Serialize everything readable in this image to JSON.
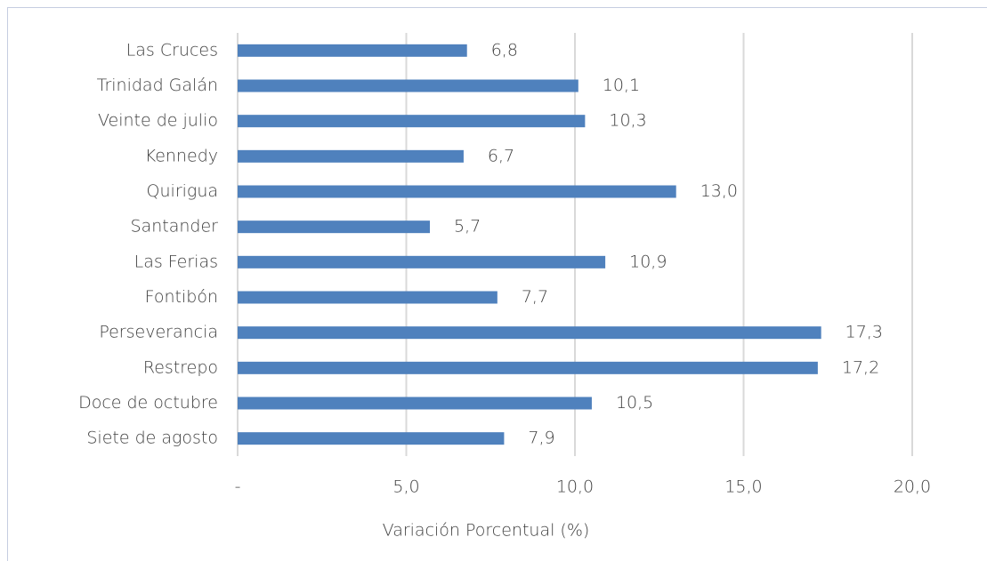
{
  "chart_data": {
    "type": "bar",
    "orientation": "horizontal",
    "x_label": "Variación Porcentual (%)",
    "categories": [
      "Las Cruces",
      "Trinidad Galán",
      "Veinte de julio",
      "Kennedy",
      "Quirigua",
      "Santander",
      "Las Ferias",
      "Fontibón",
      "Perseverancia",
      "Restrepo",
      "Doce de octubre",
      "Siete de agosto"
    ],
    "values": [
      6.8,
      10.1,
      10.3,
      6.7,
      13.0,
      5.7,
      10.9,
      7.7,
      17.3,
      17.2,
      10.5,
      7.9
    ],
    "value_labels": [
      "6,8",
      "10,1",
      "10,3",
      "6,7",
      "13,0",
      "5,7",
      "10,9",
      "7,7",
      "17,3",
      "17,2",
      "10,5",
      "7,9"
    ],
    "color": "#4f81bd",
    "xlim": [
      0,
      20
    ],
    "xticks": [
      {
        "value": 0,
        "label": "-"
      },
      {
        "value": 5,
        "label": "5,0"
      },
      {
        "value": 10,
        "label": "10,0"
      },
      {
        "value": 15,
        "label": "15,0"
      },
      {
        "value": 20,
        "label": "20,0"
      }
    ],
    "grid": true
  }
}
